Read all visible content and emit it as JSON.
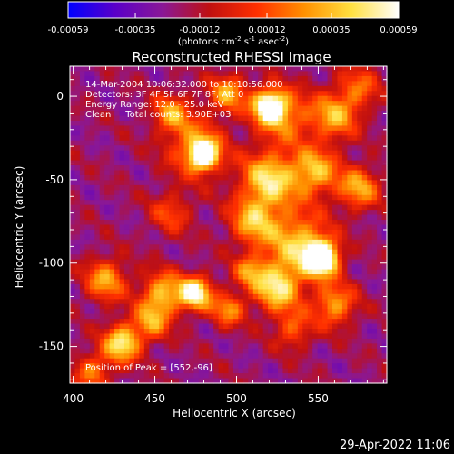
{
  "chart_data": {
    "type": "heatmap",
    "title": "Reconstructed RHESSI Image",
    "xlabel": "Heliocentric X (arcsec)",
    "ylabel": "Heliocentric Y (arcsec)",
    "xlim": [
      398,
      592
    ],
    "ylim": [
      -172,
      18
    ],
    "x_ticks": [
      400,
      450,
      500,
      550
    ],
    "y_ticks": [
      0,
      -50,
      -100,
      -150
    ],
    "colorbar": {
      "range": [
        -0.00059,
        0.00059
      ],
      "ticks": [
        "-0.00059",
        "-0.00035",
        "-0.00012",
        "0.00012",
        "0.00035",
        "0.00059"
      ],
      "unit_text": "(photons cm",
      "unit_sup1": "-2",
      "unit_mid1": " s",
      "unit_sup2": "-1",
      "unit_mid2": " asec",
      "unit_sup3": "-2",
      "unit_end": ")",
      "colors": [
        "#0000ff",
        "#5a00c8",
        "#8a1896",
        "#c01010",
        "#ff3000",
        "#ff9000",
        "#ffe040",
        "#ffffff"
      ]
    },
    "annotations": [
      "14-Mar-2004 10:06:32.000 to 10:10:56.000",
      "Detectors: 3F 4F 5F 6F 7F 8F, Att 0",
      "Energy Range: 12.0 - 25.0 keV",
      "Clean     Total counts: 3.90E+03"
    ],
    "peak_label": "Position of Peak = [552,-96]",
    "peak": [
      552,
      -96
    ],
    "background_level": -0.0002,
    "sources": [
      {
        "x": 552,
        "y": -97,
        "amp": 0.0011,
        "sigma": 7
      },
      {
        "x": 537,
        "y": -88,
        "amp": 0.00055,
        "sigma": 14
      },
      {
        "x": 520,
        "y": -6,
        "amp": 0.00085,
        "sigma": 7
      },
      {
        "x": 530,
        "y": -12,
        "amp": 0.0004,
        "sigma": 12
      },
      {
        "x": 495,
        "y": 2,
        "amp": 0.0005,
        "sigma": 8
      },
      {
        "x": 560,
        "y": -12,
        "amp": 0.0005,
        "sigma": 10
      },
      {
        "x": 575,
        "y": 5,
        "amp": 0.00035,
        "sigma": 9
      },
      {
        "x": 480,
        "y": -35,
        "amp": 0.0009,
        "sigma": 6
      },
      {
        "x": 475,
        "y": -30,
        "amp": 0.0004,
        "sigma": 13
      },
      {
        "x": 460,
        "y": -10,
        "amp": 0.00045,
        "sigma": 8
      },
      {
        "x": 520,
        "y": -50,
        "amp": 0.00065,
        "sigma": 12
      },
      {
        "x": 548,
        "y": -45,
        "amp": 0.00055,
        "sigma": 10
      },
      {
        "x": 575,
        "y": -55,
        "amp": 0.0005,
        "sigma": 9
      },
      {
        "x": 510,
        "y": -75,
        "amp": 0.0005,
        "sigma": 10
      },
      {
        "x": 525,
        "y": -115,
        "amp": 0.00065,
        "sigma": 10
      },
      {
        "x": 560,
        "y": -125,
        "amp": 0.0005,
        "sigma": 9
      },
      {
        "x": 535,
        "y": -140,
        "amp": 0.00035,
        "sigma": 8
      },
      {
        "x": 475,
        "y": -118,
        "amp": 0.0008,
        "sigma": 7
      },
      {
        "x": 455,
        "y": -118,
        "amp": 0.00055,
        "sigma": 9
      },
      {
        "x": 420,
        "y": -110,
        "amp": 0.0005,
        "sigma": 9
      },
      {
        "x": 495,
        "y": -128,
        "amp": 0.00045,
        "sigma": 7
      },
      {
        "x": 430,
        "y": -148,
        "amp": 0.0007,
        "sigma": 8
      },
      {
        "x": 448,
        "y": -135,
        "amp": 0.00045,
        "sigma": 8
      },
      {
        "x": 412,
        "y": -165,
        "amp": 0.0004,
        "sigma": 8
      },
      {
        "x": 460,
        "y": -70,
        "amp": 0.0003,
        "sigma": 9
      },
      {
        "x": 508,
        "y": -105,
        "amp": 0.0004,
        "sigma": 7
      }
    ]
  },
  "footer": {
    "timestamp": "29-Apr-2022 11:06"
  }
}
